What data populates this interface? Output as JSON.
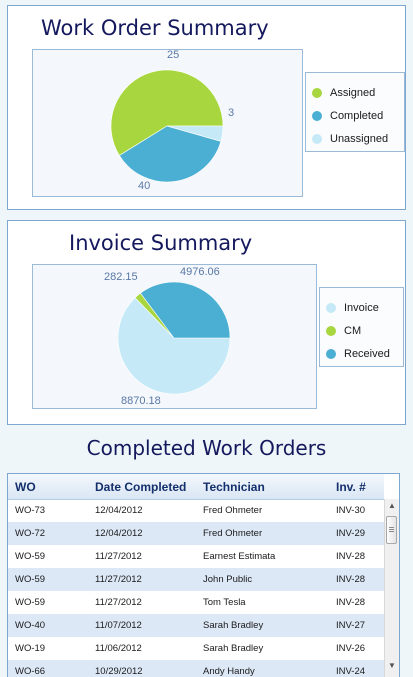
{
  "colors": {
    "green": "#a8d63f",
    "blue": "#4bafd3",
    "light_blue": "#c5e9f7"
  },
  "work_order_summary": {
    "title": "Work Order Summary",
    "legend": [
      "Assigned",
      "Completed",
      "Unassigned"
    ],
    "chart_data": {
      "type": "pie",
      "title": "Work Order Summary",
      "categories": [
        "Assigned",
        "Completed",
        "Unassigned"
      ],
      "values": [
        40,
        25,
        3
      ],
      "data_labels": [
        "40",
        "25",
        "3"
      ],
      "legend": "right"
    }
  },
  "invoice_summary": {
    "title": "Invoice Summary",
    "legend": [
      "Invoice",
      "CM",
      "Received"
    ],
    "chart_data": {
      "type": "pie",
      "title": "Invoice Summary",
      "categories": [
        "Invoice",
        "CM",
        "Received"
      ],
      "values": [
        8870.18,
        282.15,
        4976.06
      ],
      "data_labels": [
        "8870.18",
        "282.15",
        "4976.06"
      ],
      "legend": "right"
    }
  },
  "completed_work_orders": {
    "title": "Completed Work Orders",
    "columns": [
      "WO",
      "Date Completed",
      "Technician",
      "Inv. #"
    ],
    "rows": [
      [
        "WO-73",
        "12/04/2012",
        "Fred Ohmeter",
        "INV-30"
      ],
      [
        "WO-72",
        "12/04/2012",
        "Fred Ohmeter",
        "INV-29"
      ],
      [
        "WO-59",
        "11/27/2012",
        "Earnest Estimata",
        "INV-28"
      ],
      [
        "WO-59",
        "11/27/2012",
        "John Public",
        "INV-28"
      ],
      [
        "WO-59",
        "11/27/2012",
        "Tom Tesla",
        "INV-28"
      ],
      [
        "WO-40",
        "11/07/2012",
        "Sarah Bradley",
        "INV-27"
      ],
      [
        "WO-19",
        "11/06/2012",
        "Sarah Bradley",
        "INV-26"
      ],
      [
        "WO-66",
        "10/29/2012",
        "Andy Handy",
        "INV-24"
      ]
    ]
  }
}
